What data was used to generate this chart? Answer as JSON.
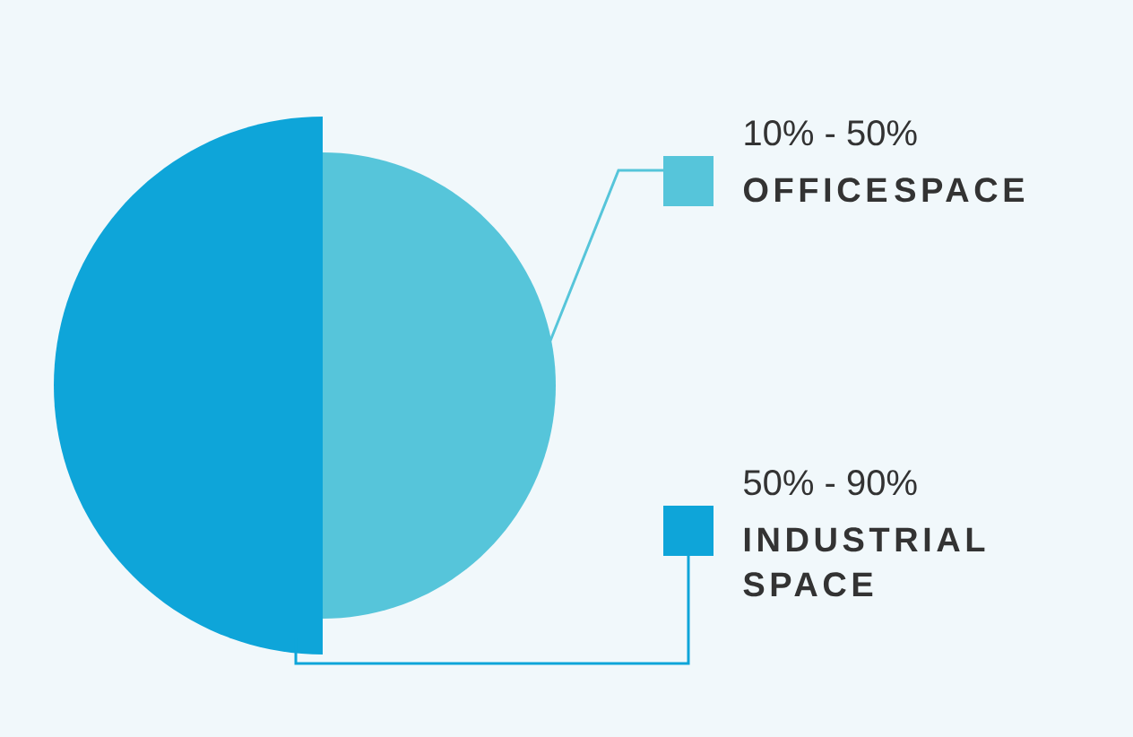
{
  "chart_data": {
    "type": "pie",
    "categories": [
      "OFFICE SPACE",
      "INDUSTRIAL SPACE"
    ],
    "values": [
      50,
      50
    ],
    "colors": [
      "#56c5da",
      "#0ea5d9"
    ],
    "annotations": [
      "10% - 50%",
      "50% - 90%"
    ],
    "legend": "right"
  }
}
